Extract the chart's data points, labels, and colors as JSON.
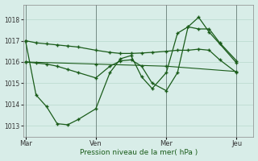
{
  "background_color": "#d8ede8",
  "grid_color": "#b8d8cc",
  "line_color": "#1a5c1a",
  "marker_color": "#1a5c1a",
  "xlabel": "Pression niveau de la mer( hPa )",
  "ylim": [
    1012.5,
    1018.7
  ],
  "yticks": [
    1013,
    1014,
    1015,
    1016,
    1017,
    1018
  ],
  "xtick_labels": [
    "Mar",
    "Ven",
    "Mer",
    "Jeu"
  ],
  "xtick_positions": [
    0.0,
    0.333,
    0.667,
    1.0
  ],
  "vline_positions": [
    0.0,
    0.333,
    0.667,
    1.0
  ],
  "series1_x": [
    0.0,
    0.05,
    0.1,
    0.15,
    0.2,
    0.25,
    0.333,
    0.4,
    0.45,
    0.5,
    0.55,
    0.6,
    0.667,
    0.72,
    0.77,
    0.82,
    0.87,
    0.92,
    1.0
  ],
  "series1_y": [
    1017.0,
    1016.9,
    1016.85,
    1016.8,
    1016.75,
    1016.7,
    1016.55,
    1016.45,
    1016.4,
    1016.4,
    1016.42,
    1016.45,
    1016.5,
    1016.55,
    1016.55,
    1016.6,
    1016.55,
    1016.1,
    1015.5
  ],
  "series2_x": [
    0.0,
    0.05,
    0.1,
    0.15,
    0.2,
    0.25,
    0.333,
    0.4,
    0.45,
    0.5,
    0.55,
    0.6,
    0.667,
    0.72,
    0.77,
    0.82,
    0.87,
    0.92,
    1.0
  ],
  "series2_y": [
    1016.0,
    1015.95,
    1015.9,
    1015.8,
    1015.65,
    1015.5,
    1015.25,
    1015.8,
    1016.05,
    1016.1,
    1015.8,
    1015.0,
    1014.65,
    1015.5,
    1017.65,
    1018.1,
    1017.4,
    1016.85,
    1015.95
  ],
  "series3_x": [
    0.0,
    0.05,
    0.1,
    0.15,
    0.2,
    0.25,
    0.333,
    0.4,
    0.45,
    0.5,
    0.55,
    0.6,
    0.667,
    0.72,
    0.77,
    0.82,
    0.87,
    0.92,
    1.0
  ],
  "series3_y": [
    1017.0,
    1014.45,
    1013.9,
    1013.1,
    1013.05,
    1013.3,
    1013.8,
    1015.5,
    1016.15,
    1016.3,
    1015.3,
    1014.75,
    1015.5,
    1017.35,
    1017.65,
    1017.55,
    1017.55,
    1016.9,
    1016.05
  ],
  "series4_x": [
    0.0,
    0.333,
    0.667,
    1.0
  ],
  "series4_y": [
    1016.0,
    1015.9,
    1015.8,
    1015.55
  ]
}
